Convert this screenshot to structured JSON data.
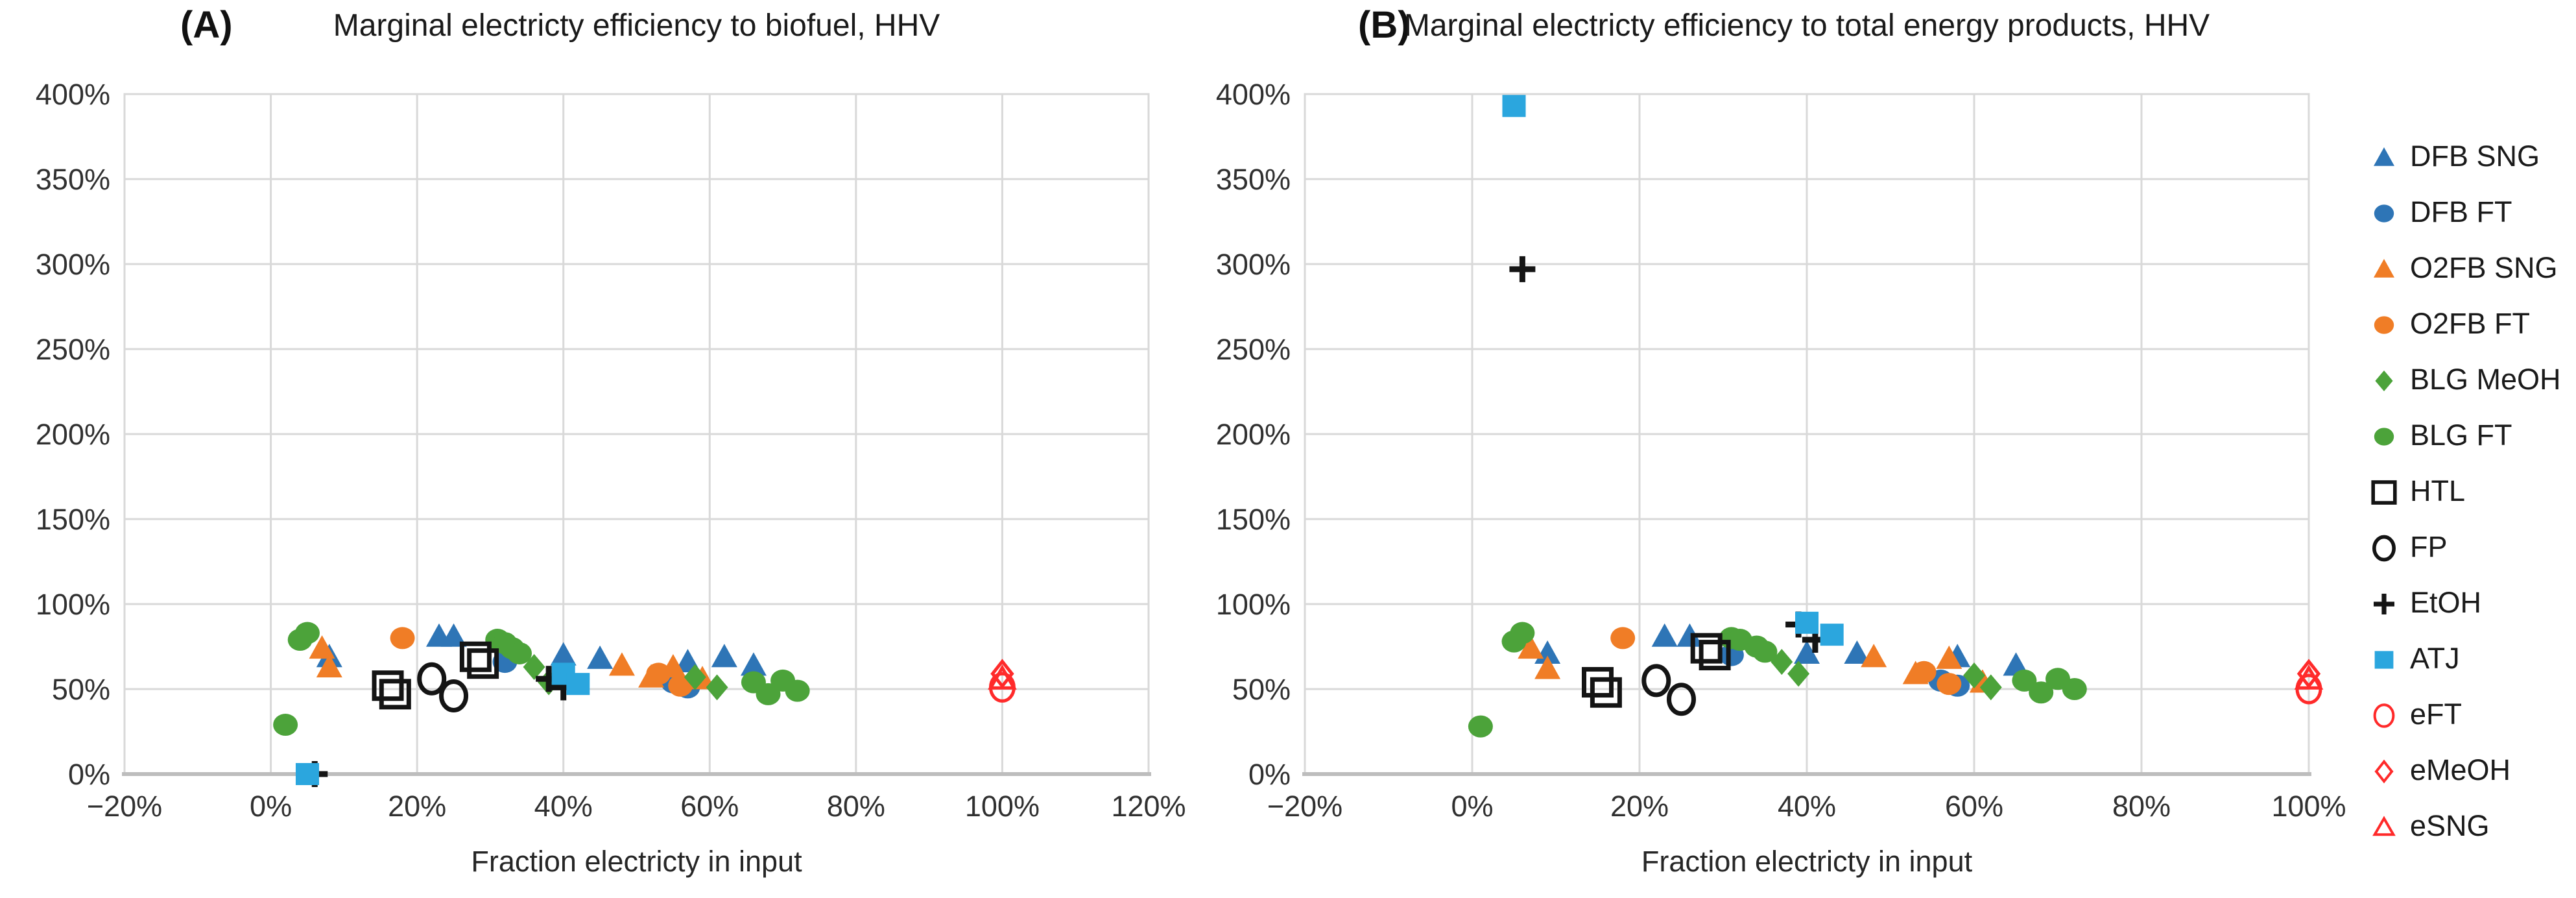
{
  "figure": {
    "background": "#FFFFFF"
  },
  "colors": {
    "blue": "#2E75B6",
    "orange": "#F07D26",
    "green": "#4CA33A",
    "cyan": "#2BA6DE",
    "red": "#FF2A2A",
    "black": "#141414",
    "grid": "#D9D9D9",
    "axis": "#BDBDBD",
    "tick_text": "#303030"
  },
  "series_defs": [
    {
      "id": "dfb_sng",
      "label": "DFB SNG",
      "marker": "triangle",
      "color": "blue",
      "filled": true
    },
    {
      "id": "dfb_ft",
      "label": "DFB FT",
      "marker": "circle",
      "color": "blue",
      "filled": true
    },
    {
      "id": "o2fb_sng",
      "label": "O2FB SNG",
      "marker": "triangle",
      "color": "orange",
      "filled": true
    },
    {
      "id": "o2fb_ft",
      "label": "O2FB FT",
      "marker": "circle",
      "color": "orange",
      "filled": true
    },
    {
      "id": "blg_meoh",
      "label": "BLG MeOH",
      "marker": "diamond",
      "color": "green",
      "filled": true
    },
    {
      "id": "blg_ft",
      "label": "BLG FT",
      "marker": "circle",
      "color": "green",
      "filled": true
    },
    {
      "id": "htl",
      "label": "HTL",
      "marker": "square",
      "color": "black",
      "filled": false
    },
    {
      "id": "fp",
      "label": "FP",
      "marker": "circle",
      "color": "black",
      "filled": false
    },
    {
      "id": "etoh",
      "label": "EtOH",
      "marker": "plus",
      "color": "black",
      "filled": false
    },
    {
      "id": "atj",
      "label": "ATJ",
      "marker": "square",
      "color": "cyan",
      "filled": true
    },
    {
      "id": "eft",
      "label": "eFT",
      "marker": "circle",
      "color": "red",
      "filled": false
    },
    {
      "id": "emeoh",
      "label": "eMeOH",
      "marker": "diamond",
      "color": "red",
      "filled": false
    },
    {
      "id": "esng",
      "label": "eSNG",
      "marker": "triangle",
      "color": "red",
      "filled": false
    }
  ],
  "chart_data": "see charts",
  "charts": [
    {
      "panel_label": "(A)",
      "title": "Marginal electricty efficiency to biofuel, HHV",
      "xlabel": "Fraction electricty in input",
      "type": "scatter",
      "xlim": [
        -20,
        120
      ],
      "ylim": [
        0,
        400
      ],
      "x_ticks": [
        -20,
        0,
        20,
        40,
        60,
        80,
        100,
        120
      ],
      "x_tick_labels": [
        "−20%",
        "0%",
        "20%",
        "40%",
        "60%",
        "80%",
        "100%",
        "120%"
      ],
      "y_ticks": [
        0,
        50,
        100,
        150,
        200,
        250,
        300,
        350,
        400
      ],
      "y_tick_labels": [
        "0%",
        "50%",
        "100%",
        "150%",
        "200%",
        "250%",
        "300%",
        "350%",
        "400%"
      ],
      "grid": true,
      "series": [
        {
          "id": "dfb_sng",
          "points": [
            [
              8,
              69
            ],
            [
              23,
              81
            ],
            [
              25,
              81
            ],
            [
              40,
              70
            ],
            [
              45,
              68
            ],
            [
              57,
              66
            ],
            [
              62,
              69
            ],
            [
              66,
              64
            ]
          ]
        },
        {
          "id": "dfb_ft",
          "points": [
            [
              32,
              66
            ],
            [
              55,
              54
            ],
            [
              57,
              51
            ]
          ]
        },
        {
          "id": "o2fb_sng",
          "points": [
            [
              7,
              74
            ],
            [
              8,
              63
            ],
            [
              48,
              64
            ],
            [
              52,
              57
            ],
            [
              55,
              63
            ],
            [
              59,
              56
            ]
          ]
        },
        {
          "id": "o2fb_ft",
          "points": [
            [
              18,
              80
            ],
            [
              53,
              59
            ],
            [
              56,
              52
            ]
          ]
        },
        {
          "id": "blg_meoh",
          "points": [
            [
              36,
              63
            ],
            [
              38,
              54
            ],
            [
              58,
              57
            ],
            [
              61,
              51
            ]
          ]
        },
        {
          "id": "blg_ft",
          "points": [
            [
              2,
              29
            ],
            [
              4,
              79
            ],
            [
              5,
              83
            ],
            [
              31,
              79
            ],
            [
              32,
              77
            ],
            [
              33,
              74
            ],
            [
              34,
              71
            ],
            [
              66,
              54
            ],
            [
              68,
              47
            ],
            [
              70,
              55
            ],
            [
              72,
              49
            ]
          ]
        },
        {
          "id": "htl",
          "points": [
            [
              16,
              52
            ],
            [
              17,
              47
            ],
            [
              28,
              69
            ],
            [
              29,
              65
            ]
          ]
        },
        {
          "id": "fp",
          "points": [
            [
              22,
              56
            ],
            [
              25,
              46
            ]
          ]
        },
        {
          "id": "etoh",
          "points": [
            [
              6,
              0
            ],
            [
              38,
              56
            ],
            [
              40,
              51
            ]
          ]
        },
        {
          "id": "atj",
          "points": [
            [
              5,
              0
            ],
            [
              40,
              59
            ],
            [
              42,
              53
            ]
          ]
        },
        {
          "id": "eft",
          "points": [
            [
              100,
              51
            ]
          ]
        },
        {
          "id": "emeoh",
          "points": [
            [
              100,
              59
            ]
          ]
        },
        {
          "id": "esng",
          "points": [
            [
              100,
              56
            ]
          ]
        }
      ]
    },
    {
      "panel_label": "(B)",
      "title": "Marginal electricty efficiency to total energy products, HHV",
      "xlabel": "Fraction electricty in input",
      "type": "scatter",
      "xlim": [
        -20,
        100
      ],
      "ylim": [
        0,
        400
      ],
      "x_ticks": [
        -20,
        0,
        20,
        40,
        60,
        80,
        100
      ],
      "x_tick_labels": [
        "−20%",
        "0%",
        "20%",
        "40%",
        "60%",
        "80%",
        "100%"
      ],
      "y_ticks": [
        0,
        50,
        100,
        150,
        200,
        250,
        300,
        350,
        400
      ],
      "y_tick_labels": [
        "0%",
        "50%",
        "100%",
        "150%",
        "200%",
        "250%",
        "300%",
        "350%",
        "400%"
      ],
      "grid": true,
      "series": [
        {
          "id": "dfb_sng",
          "points": [
            [
              9,
              71
            ],
            [
              23,
              81
            ],
            [
              26,
              81
            ],
            [
              40,
              71
            ],
            [
              46,
              71
            ],
            [
              58,
              69
            ],
            [
              65,
              64
            ]
          ]
        },
        {
          "id": "dfb_ft",
          "points": [
            [
              31,
              70
            ],
            [
              56,
              55
            ],
            [
              58,
              52
            ]
          ]
        },
        {
          "id": "o2fb_sng",
          "points": [
            [
              7,
              74
            ],
            [
              9,
              62
            ],
            [
              48,
              69
            ],
            [
              53,
              59
            ],
            [
              57,
              68
            ],
            [
              61,
              54
            ]
          ]
        },
        {
          "id": "o2fb_ft",
          "points": [
            [
              18,
              80
            ],
            [
              54,
              60
            ],
            [
              57,
              53
            ]
          ]
        },
        {
          "id": "blg_meoh",
          "points": [
            [
              37,
              66
            ],
            [
              39,
              59
            ],
            [
              60,
              58
            ],
            [
              62,
              51
            ]
          ]
        },
        {
          "id": "blg_ft",
          "points": [
            [
              1,
              28
            ],
            [
              5,
              78
            ],
            [
              6,
              83
            ],
            [
              31,
              80
            ],
            [
              32,
              79
            ],
            [
              34,
              75
            ],
            [
              35,
              72
            ],
            [
              66,
              55
            ],
            [
              68,
              48
            ],
            [
              70,
              56
            ],
            [
              72,
              50
            ]
          ]
        },
        {
          "id": "htl",
          "points": [
            [
              15,
              54
            ],
            [
              16,
              48
            ],
            [
              28,
              74
            ],
            [
              29,
              70
            ]
          ]
        },
        {
          "id": "fp",
          "points": [
            [
              22,
              55
            ],
            [
              25,
              44
            ]
          ]
        },
        {
          "id": "etoh",
          "points": [
            [
              6,
              297
            ],
            [
              39,
              88
            ],
            [
              41,
              79
            ]
          ]
        },
        {
          "id": "atj",
          "points": [
            [
              5,
              393
            ],
            [
              40,
              89
            ],
            [
              43,
              82
            ]
          ]
        },
        {
          "id": "eft",
          "points": [
            [
              100,
              50
            ]
          ]
        },
        {
          "id": "emeoh",
          "points": [
            [
              100,
              59
            ]
          ]
        },
        {
          "id": "esng",
          "points": [
            [
              100,
              56
            ]
          ]
        }
      ]
    }
  ]
}
